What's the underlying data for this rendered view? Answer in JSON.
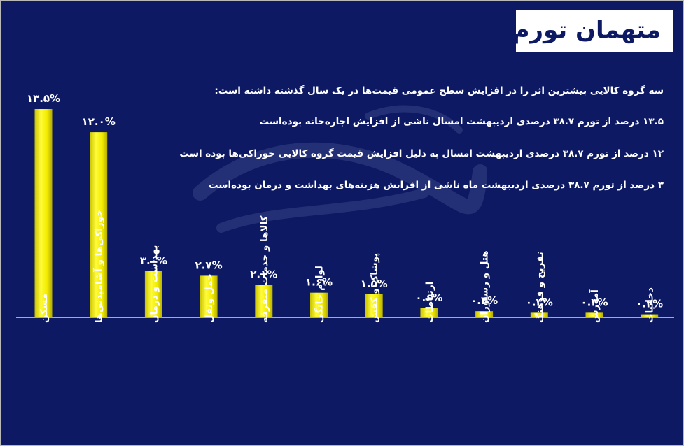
{
  "title": "متهمان تورم",
  "notes": [
    "سه گروه کالایی بیشترین اثر را در افزایش سطح عمومی قیمت‌ها در یک سال گذشته داشته است:",
    "۱۳.۵ درصد از تورم ۳۸.۷ درصدی اردیبهشت امسال ناشی از افزایش اجاره‌خانه بوده‌است",
    "۱۲ درصد از تورم ۳۸.۷ درصدی اردیبهشت امسال به دلیل افزایش قیمت گروه کالایی خوراکی‌ها بوده است",
    "۳ درصد از تورم ۳۸.۷ درصدی اردیبهشت ماه ناشی از افزایش هزینه‌های بهداشت و درمان بوده‌است"
  ],
  "watermark": "جهان صنعت نیوز",
  "colors": {
    "background": "#0d1a63",
    "bar": "#f2ec00",
    "text": "#ffffff"
  },
  "chart_data": {
    "type": "bar",
    "categories": [
      "مسکن",
      "خوراکی‌ها و آشامیدنی‌ها",
      "بهداشت و درمان",
      "حمل ونقل",
      "کالاها و خدمات متفرقه",
      "لوازم خانگی",
      "پوشاک و کفش",
      "ارتباطات",
      "هتل و رستوران",
      "تفریح و فرهنگ",
      "آموزش",
      "دخانیات"
    ],
    "values": [
      13.5,
      12.0,
      3.0,
      2.7,
      2.1,
      1.6,
      1.5,
      0.6,
      0.4,
      0.3,
      0.3,
      0.2
    ],
    "value_labels": [
      "۱۳.۵%",
      "۱۲.۰%",
      "۳.۰%",
      "۲.۷%",
      "۲.۱%",
      "۱.۶%",
      "۱.۵%",
      "۰.۶%",
      "۰.۴%",
      "۰.۳%",
      "۰.۳%",
      "۰.۲%"
    ],
    "title": "",
    "xlabel": "",
    "ylabel": "",
    "ylim": [
      0,
      13.5
    ],
    "grid": false,
    "legend": "none"
  }
}
